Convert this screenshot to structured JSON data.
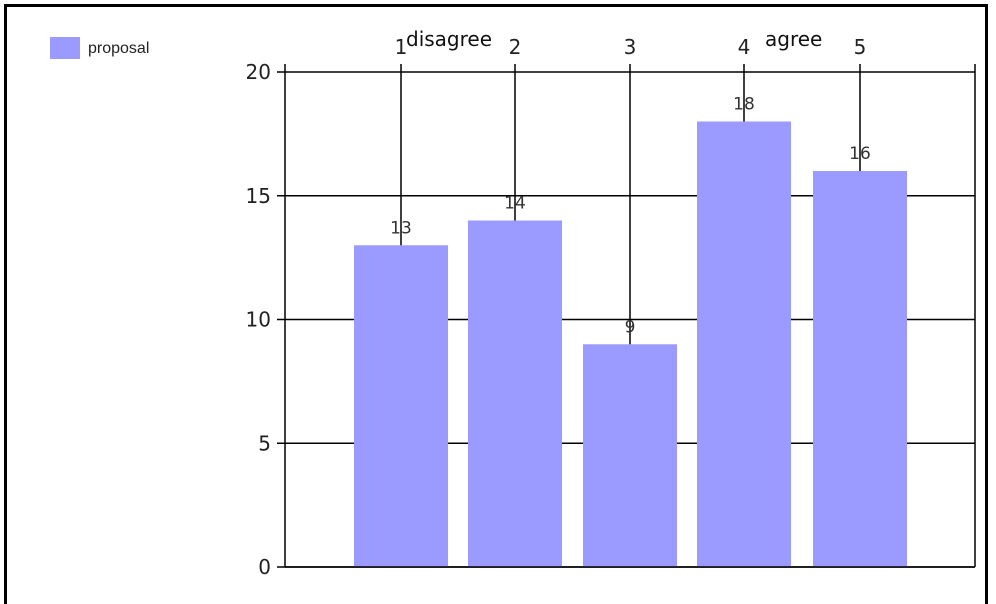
{
  "chart_data": {
    "type": "bar",
    "categories": [
      "1",
      "2",
      "3",
      "4",
      "5"
    ],
    "series": [
      {
        "name": "proposal",
        "values": [
          13,
          14,
          9,
          18,
          16
        ]
      }
    ],
    "ylim": [
      0,
      20
    ],
    "yticks": [
      0,
      5,
      10,
      15,
      20
    ],
    "grid": true,
    "legend_position": "top-left",
    "annotations": {
      "left": "disagree",
      "right": "agree"
    },
    "colors": {
      "bar": "#9b9bff",
      "grid": "#000000",
      "axis": "#000000"
    }
  }
}
